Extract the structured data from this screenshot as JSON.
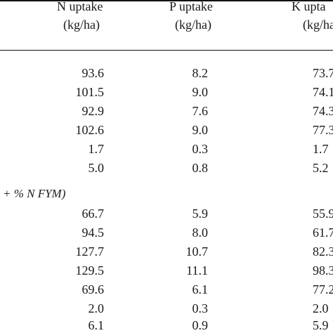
{
  "headers": [
    {
      "line1": "N uptake",
      "line2": "(kg/ha)"
    },
    {
      "line1": "P uptake",
      "line2": "(kg/ha)"
    },
    {
      "line1": "K upta",
      "line2": "(kg/ha"
    }
  ],
  "groups": [
    {
      "section_label": "",
      "rows": [
        [
          "93.6",
          "8.2",
          "73.7"
        ],
        [
          "101.5",
          "9.0",
          "74.1"
        ],
        [
          "92.9",
          "7.6",
          "74.3"
        ],
        [
          "102.6",
          "9.0",
          "77.3"
        ],
        [
          "1.7",
          "0.3",
          "1.7"
        ],
        [
          "5.0",
          "0.8",
          "5.2"
        ]
      ]
    },
    {
      "section_label": "+ % N FYM)",
      "rows": [
        [
          "66.7",
          "5.9",
          "55.9"
        ],
        [
          "94.5",
          "8.0",
          "61.7"
        ],
        [
          "127.7",
          "10.7",
          "82.3"
        ],
        [
          "129.5",
          "11.1",
          "98.3"
        ],
        [
          "69.6",
          "6.1",
          "77.2"
        ],
        [
          "2.0",
          "0.3",
          "2.0"
        ],
        [
          "6.1",
          "0.9",
          "5.9"
        ]
      ]
    }
  ]
}
